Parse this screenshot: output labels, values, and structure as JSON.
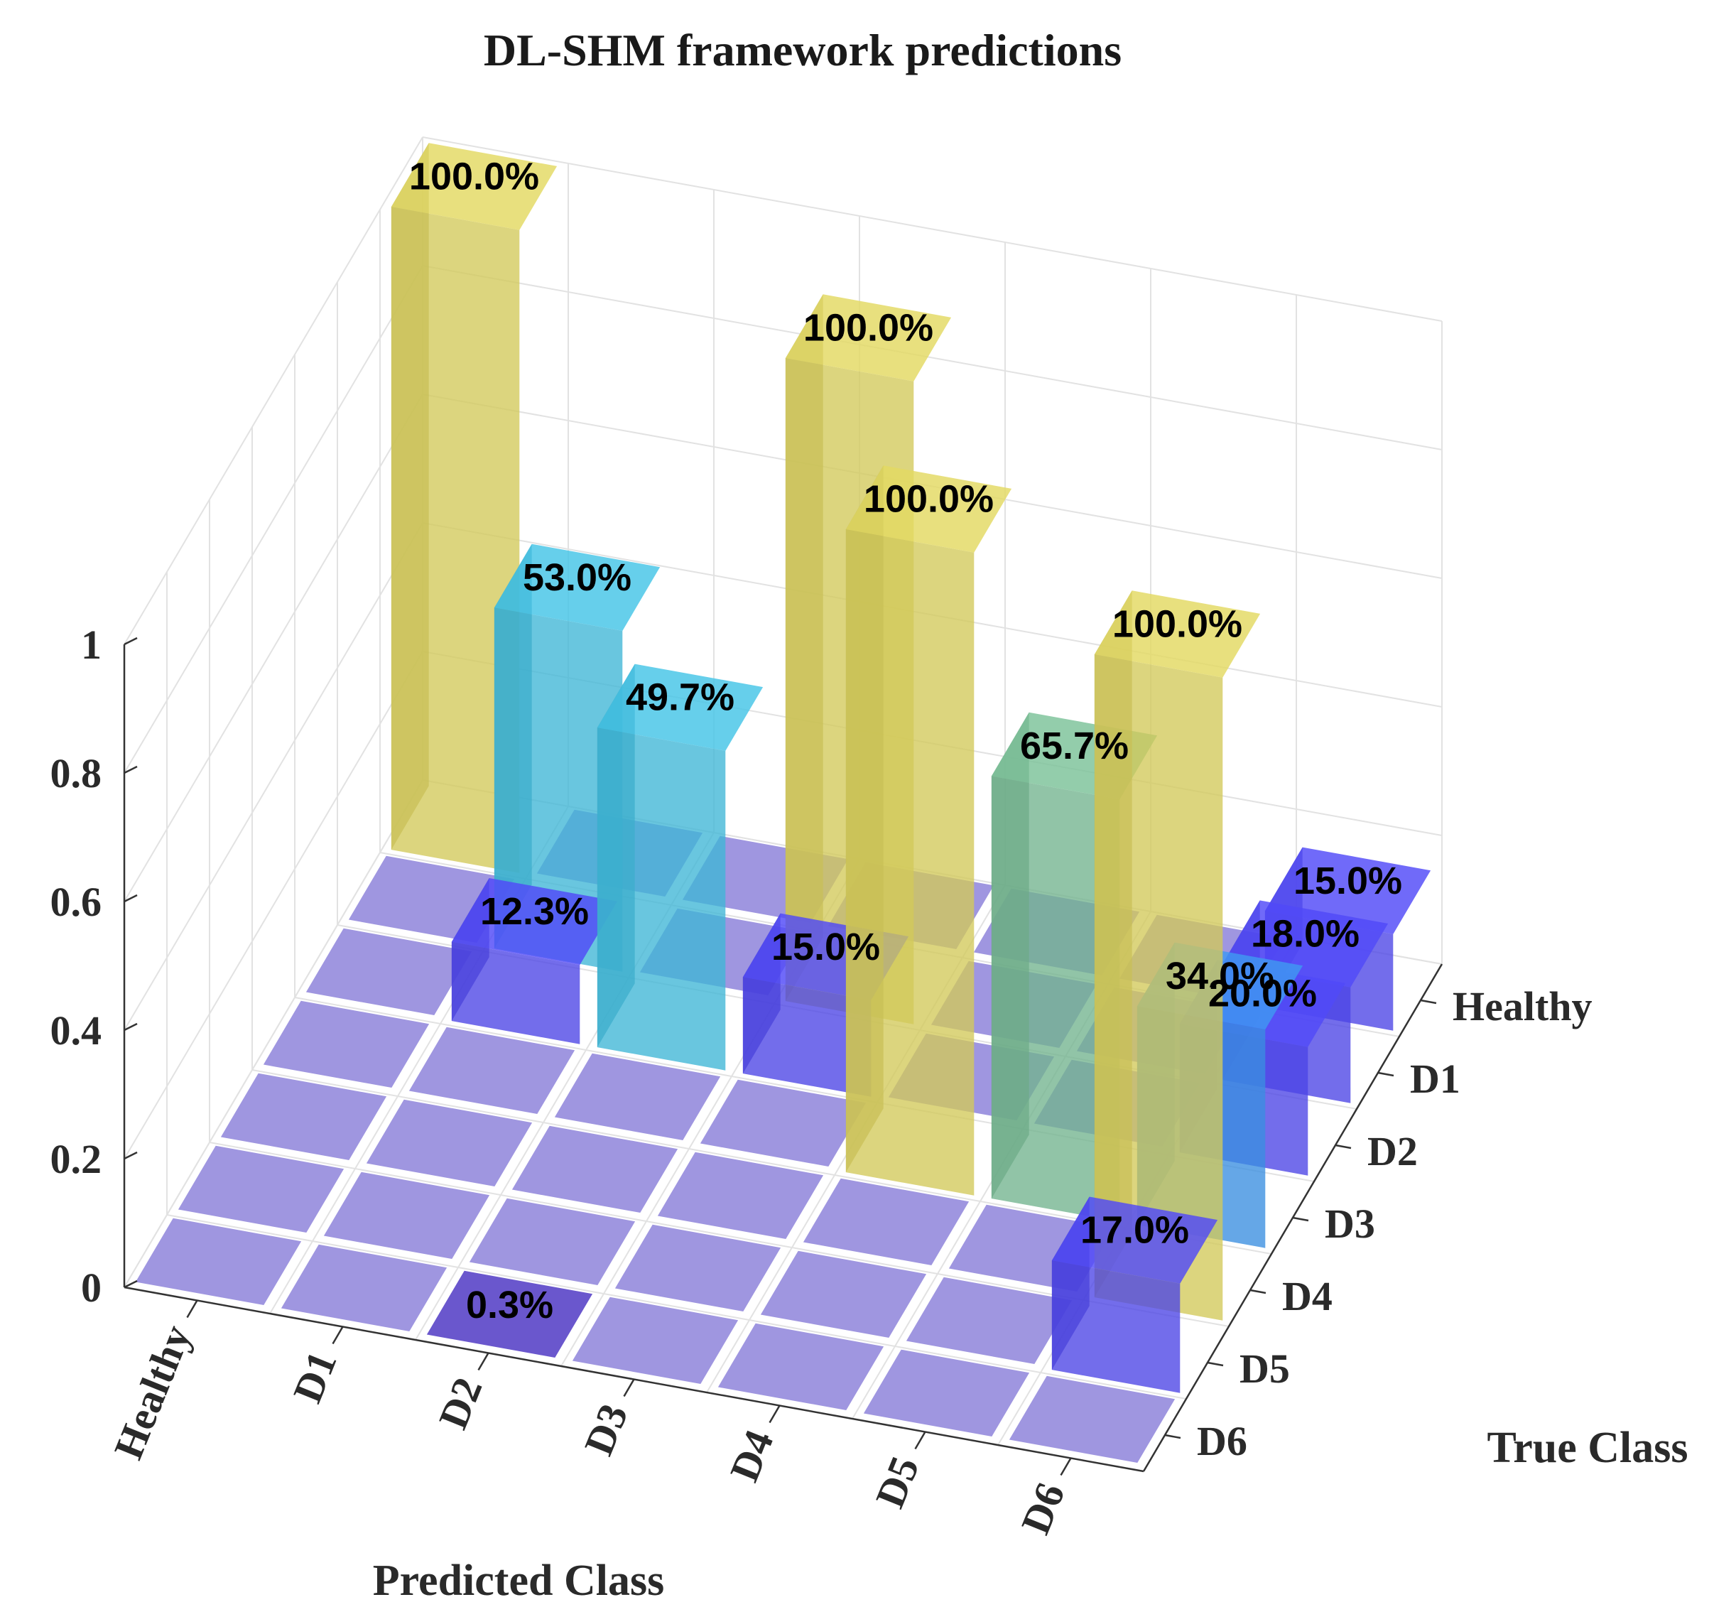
{
  "chart_data": {
    "type": "bar3d",
    "title": "DL-SHM framework predictions",
    "xlabel": "Predicted Class",
    "ylabel": "True Class",
    "zlim": [
      0,
      1
    ],
    "zticks": [
      "0",
      "0.2",
      "0.4",
      "0.6",
      "0.8",
      "1"
    ],
    "predicted_classes": [
      "Healthy",
      "D1",
      "D2",
      "D3",
      "D4",
      "D5",
      "D6"
    ],
    "true_classes": [
      "Healthy",
      "D1",
      "D2",
      "D3",
      "D4",
      "D5",
      "D6"
    ],
    "bars": [
      {
        "predicted": "Healthy",
        "true": "Healthy",
        "value": 1.0,
        "label": "100.0%"
      },
      {
        "predicted": "D1",
        "true": "D1",
        "value": 0.53,
        "label": "53.0%"
      },
      {
        "predicted": "D1",
        "true": "D2",
        "value": 0.123,
        "label": "12.3%"
      },
      {
        "predicted": "D2",
        "true": "D2",
        "value": 0.497,
        "label": "49.7%"
      },
      {
        "predicted": "D2",
        "true": "D6",
        "value": 0.003,
        "label": "0.3%"
      },
      {
        "predicted": "D3",
        "true": "D1",
        "value": 1.0,
        "label": "100.0%"
      },
      {
        "predicted": "D3",
        "true": "D2",
        "value": 0.15,
        "label": "15.0%"
      },
      {
        "predicted": "D4",
        "true": "D3",
        "value": 1.0,
        "label": "100.0%"
      },
      {
        "predicted": "D5",
        "true": "D3",
        "value": 0.657,
        "label": "65.7%"
      },
      {
        "predicted": "D6",
        "true": "D4",
        "value": 1.0,
        "label": "100.0%"
      },
      {
        "predicted": "D6",
        "true": "D2",
        "value": 0.2,
        "label": "20.0%"
      },
      {
        "predicted": "D6",
        "true": "D3",
        "value": 0.34,
        "label": "34.0%"
      },
      {
        "predicted": "D6",
        "true": "Healthy",
        "value": 0.15,
        "label": "15.0%"
      },
      {
        "predicted": "D6",
        "true": "D1",
        "value": 0.18,
        "label": "18.0%"
      },
      {
        "predicted": "D6",
        "true": "D5",
        "value": 0.17,
        "label": "17.0%"
      }
    ],
    "colors": {
      "floor": "#8e84db",
      "low": "#4b44e6",
      "mid_low": "#3a8ee0",
      "mid": "#3fb6d6",
      "mid_high": "#72b48e",
      "high": "#d2c95a"
    }
  }
}
